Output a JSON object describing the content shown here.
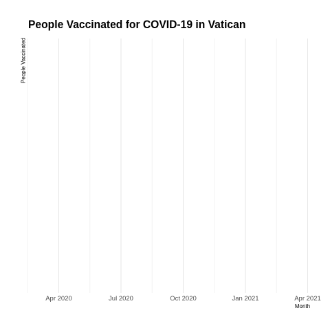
{
  "chart_data": {
    "type": "line",
    "title": "People Vaccinated for COVID-19 in Vatican",
    "xlabel": "Month",
    "ylabel": "People Vaccinated",
    "x_tick_labels": [
      "Apr 2020",
      "Jul 2020",
      "Oct 2020",
      "Jan 2021",
      "Apr 2021"
    ],
    "series": [],
    "grid": true,
    "legend": "none"
  }
}
